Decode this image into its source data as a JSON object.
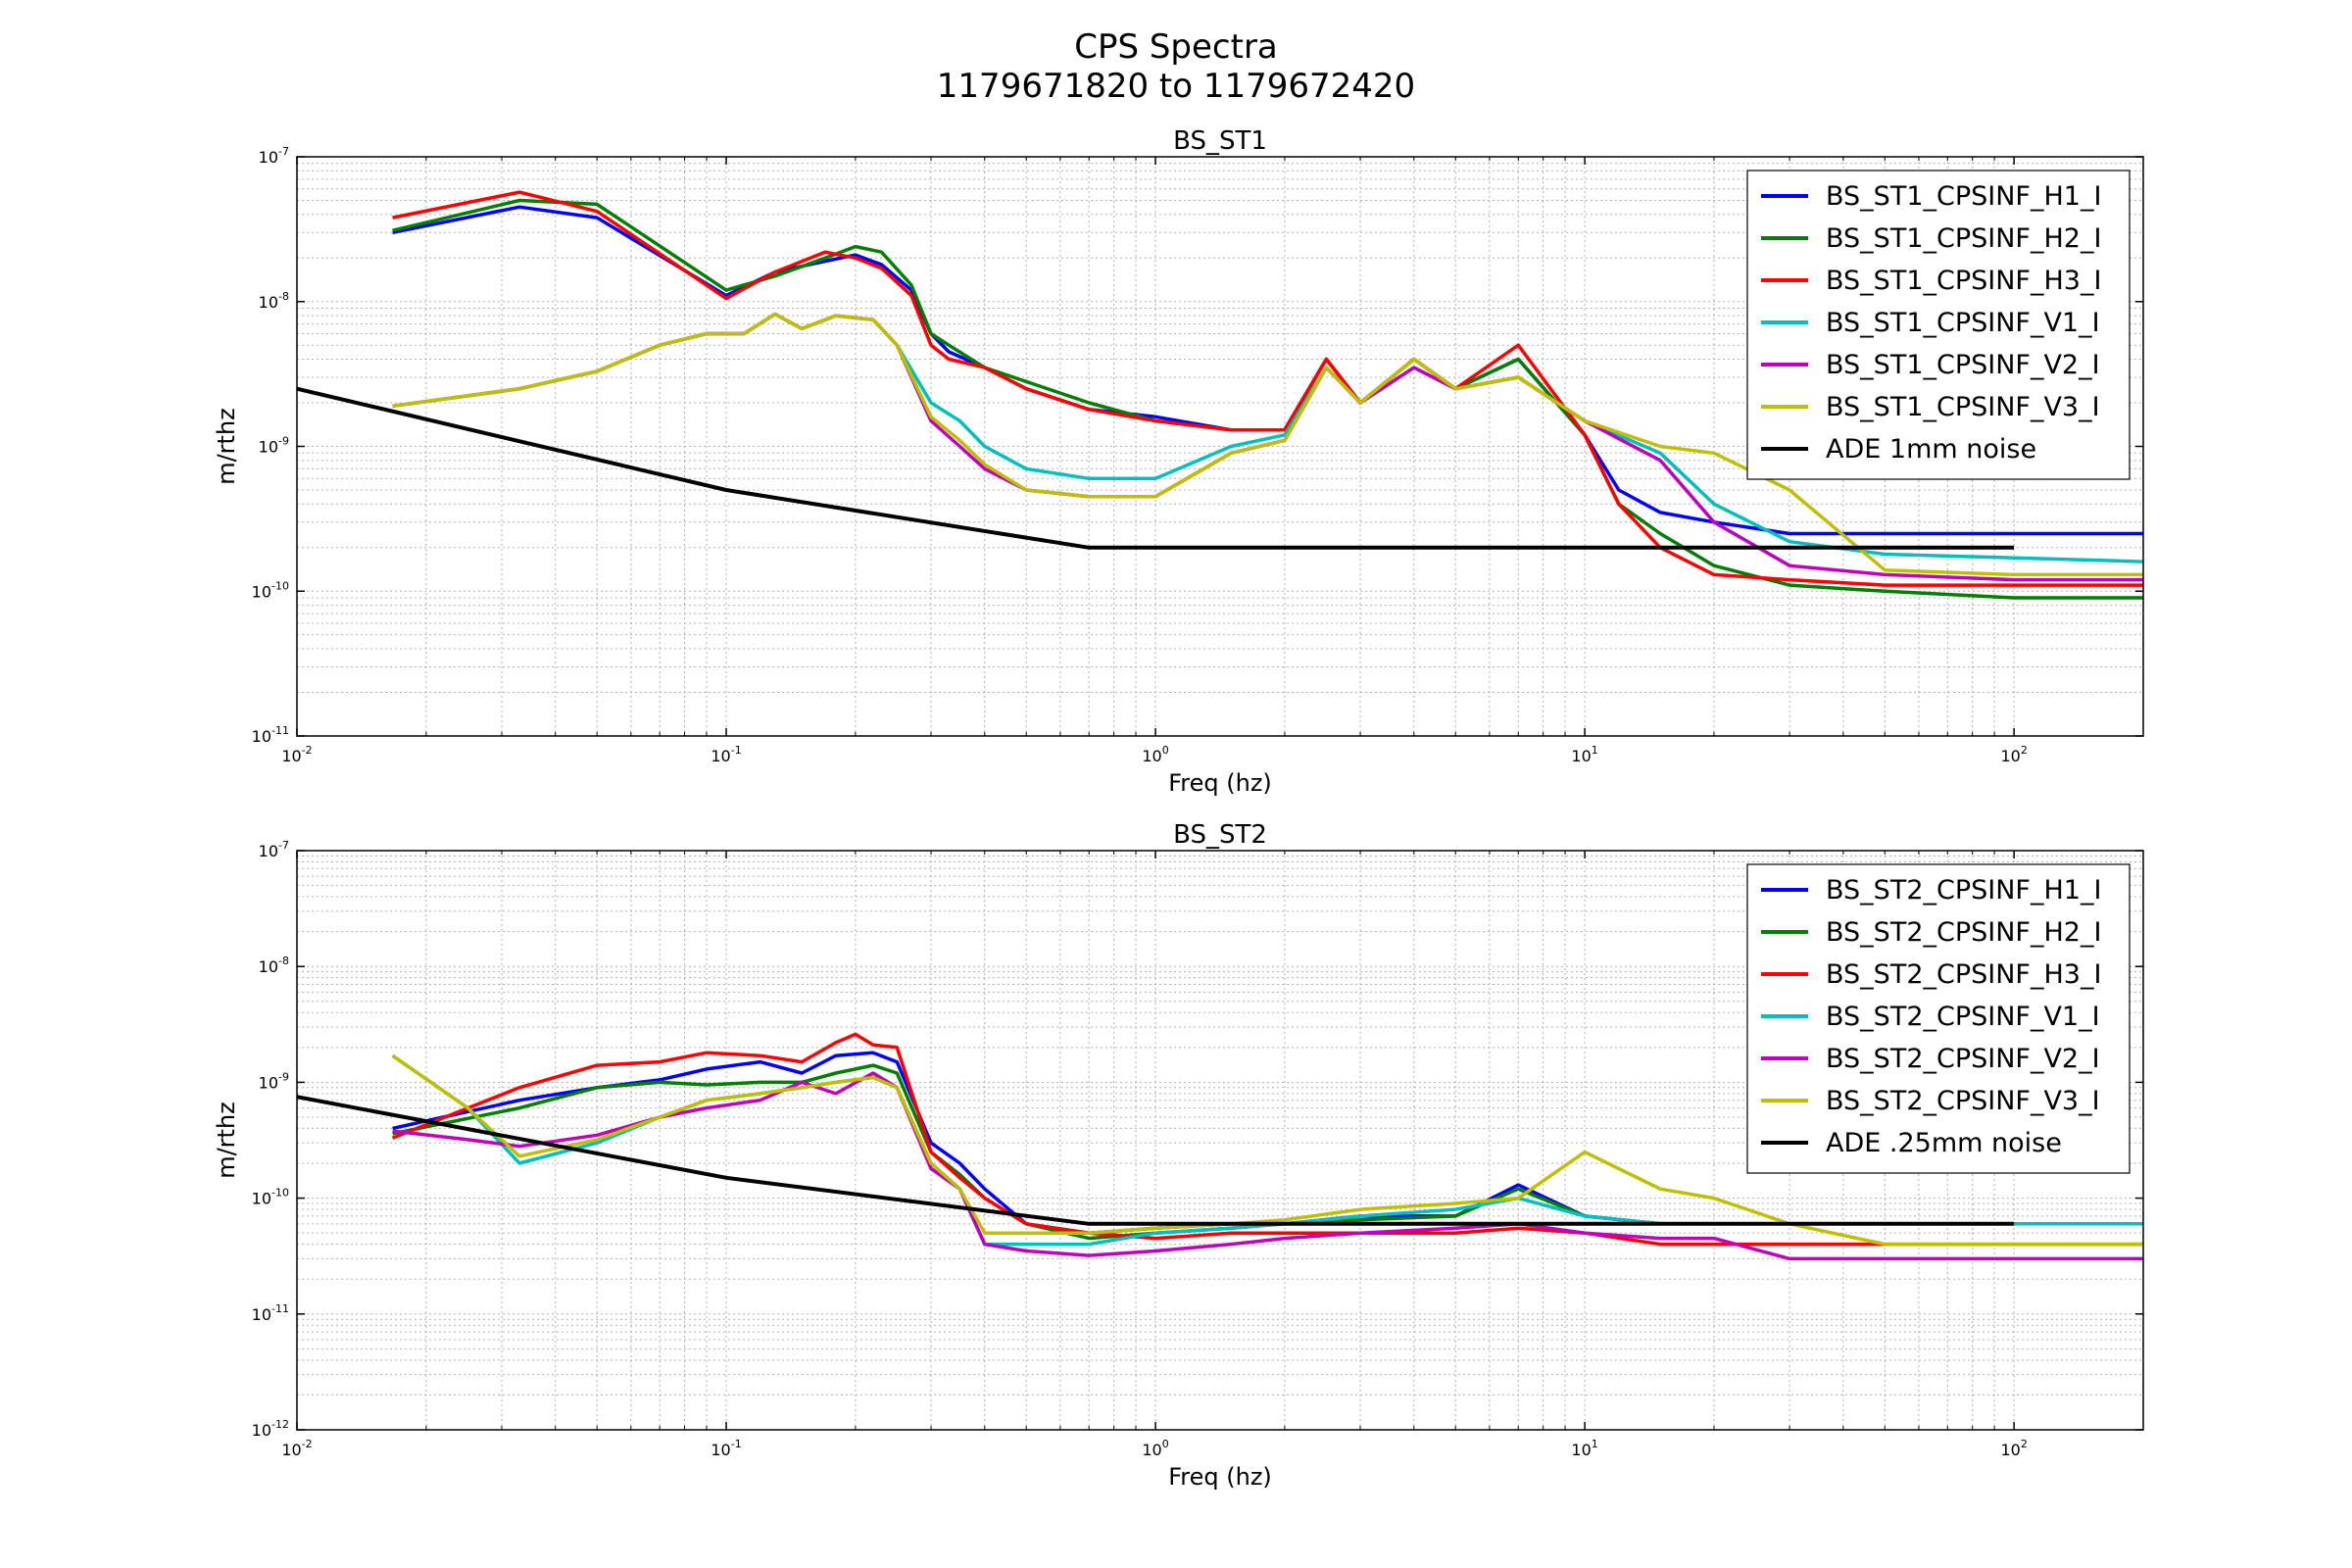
{
  "figure": {
    "title_line1": "CPS Spectra",
    "title_line2": "1179671820 to 1179672420"
  },
  "chart_data": [
    {
      "type": "line",
      "title": "BS_ST1",
      "xlabel": "Freq (hz)",
      "ylabel": "m/rthz",
      "xscale": "log",
      "yscale": "log",
      "xlim": [
        0.01,
        200
      ],
      "ylim": [
        1e-11,
        1e-07
      ],
      "grid": true,
      "legend_position": "top-right",
      "xticks": [
        0.01,
        0.1,
        1,
        10,
        100
      ],
      "xtick_labels": [
        [
          "10",
          "-2"
        ],
        [
          "10",
          "-1"
        ],
        [
          "10",
          "0"
        ],
        [
          "10",
          "1"
        ],
        [
          "10",
          "2"
        ]
      ],
      "yticks": [
        1e-11,
        1e-10,
        1e-09,
        1e-08,
        1e-07
      ],
      "ytick_labels": [
        [
          "10",
          "-11"
        ],
        [
          "10",
          "-10"
        ],
        [
          "10",
          "-9"
        ],
        [
          "10",
          "-8"
        ],
        [
          "10",
          "-7"
        ]
      ],
      "series": [
        {
          "name": "BS_ST1_CPSINF_H1_I",
          "color": "#0000ff",
          "x": [
            0.0167,
            0.033,
            0.05,
            0.1,
            0.13,
            0.17,
            0.2,
            0.23,
            0.27,
            0.3,
            0.33,
            0.4,
            0.5,
            0.7,
            1.0,
            1.5,
            2.0,
            2.5,
            3.0,
            4.0,
            5.0,
            7.0,
            10,
            12,
            15,
            20,
            30,
            50,
            100,
            200
          ],
          "y": [
            3e-08,
            4.5e-08,
            3.8e-08,
            1.1e-08,
            1.6e-08,
            1.9e-08,
            2.1e-08,
            1.8e-08,
            1.2e-08,
            6e-09,
            4.5e-09,
            3.5e-09,
            2.5e-09,
            1.8e-09,
            1.6e-09,
            1.3e-09,
            1.3e-09,
            4e-09,
            2e-09,
            4e-09,
            2.5e-09,
            4e-09,
            1.2e-09,
            5e-10,
            3.5e-10,
            3e-10,
            2.5e-10,
            2.5e-10,
            2.5e-10,
            2.5e-10
          ]
        },
        {
          "name": "BS_ST1_CPSINF_H2_I",
          "color": "#007f00",
          "x": [
            0.0167,
            0.033,
            0.05,
            0.1,
            0.13,
            0.17,
            0.2,
            0.23,
            0.27,
            0.3,
            0.33,
            0.4,
            0.5,
            0.7,
            1.0,
            1.5,
            2.0,
            2.5,
            3.0,
            4.0,
            5.0,
            7.0,
            10,
            12,
            15,
            20,
            30,
            50,
            100,
            200
          ],
          "y": [
            3.1e-08,
            5e-08,
            4.7e-08,
            1.2e-08,
            1.5e-08,
            2e-08,
            2.4e-08,
            2.2e-08,
            1.3e-08,
            6e-09,
            5e-09,
            3.5e-09,
            2.8e-09,
            2e-09,
            1.5e-09,
            1.3e-09,
            1.3e-09,
            4e-09,
            2e-09,
            4e-09,
            2.5e-09,
            4e-09,
            1.2e-09,
            4e-10,
            2.5e-10,
            1.5e-10,
            1.1e-10,
            1e-10,
            9e-11,
            9e-11
          ]
        },
        {
          "name": "BS_ST1_CPSINF_H3_I",
          "color": "#ff0000",
          "x": [
            0.0167,
            0.033,
            0.05,
            0.1,
            0.13,
            0.17,
            0.2,
            0.23,
            0.27,
            0.3,
            0.33,
            0.4,
            0.5,
            0.7,
            1.0,
            1.5,
            2.0,
            2.5,
            3.0,
            4.0,
            5.0,
            7.0,
            10,
            12,
            15,
            20,
            30,
            50,
            100,
            200
          ],
          "y": [
            3.8e-08,
            5.7e-08,
            4.2e-08,
            1.05e-08,
            1.6e-08,
            2.2e-08,
            2e-08,
            1.7e-08,
            1.1e-08,
            5e-09,
            4e-09,
            3.5e-09,
            2.5e-09,
            1.8e-09,
            1.5e-09,
            1.3e-09,
            1.3e-09,
            4e-09,
            2e-09,
            4e-09,
            2.5e-09,
            5e-09,
            1.2e-09,
            4e-10,
            2e-10,
            1.3e-10,
            1.2e-10,
            1.1e-10,
            1.1e-10,
            1.1e-10
          ]
        },
        {
          "name": "BS_ST1_CPSINF_V1_I",
          "color": "#00bfbf",
          "x": [
            0.0167,
            0.033,
            0.05,
            0.07,
            0.09,
            0.11,
            0.13,
            0.15,
            0.18,
            0.22,
            0.25,
            0.3,
            0.35,
            0.4,
            0.5,
            0.7,
            1.0,
            1.5,
            2.0,
            2.5,
            3.0,
            4.0,
            5.0,
            7.0,
            10,
            15,
            20,
            30,
            50,
            100,
            200
          ],
          "y": [
            1.9e-09,
            2.5e-09,
            3.3e-09,
            5e-09,
            6e-09,
            6e-09,
            8.2e-09,
            6.5e-09,
            8e-09,
            7.5e-09,
            5e-09,
            2e-09,
            1.5e-09,
            1e-09,
            7e-10,
            6e-10,
            6e-10,
            1e-09,
            1.2e-09,
            3.5e-09,
            2e-09,
            3.5e-09,
            2.5e-09,
            3e-09,
            1.5e-09,
            9e-10,
            4e-10,
            2.2e-10,
            1.8e-10,
            1.7e-10,
            1.6e-10
          ]
        },
        {
          "name": "BS_ST1_CPSINF_V2_I",
          "color": "#bf00bf",
          "x": [
            0.0167,
            0.033,
            0.05,
            0.07,
            0.09,
            0.11,
            0.13,
            0.15,
            0.18,
            0.22,
            0.25,
            0.3,
            0.35,
            0.4,
            0.5,
            0.7,
            1.0,
            1.5,
            2.0,
            2.5,
            3.0,
            4.0,
            5.0,
            7.0,
            10,
            15,
            20,
            30,
            50,
            100,
            200
          ],
          "y": [
            1.9e-09,
            2.5e-09,
            3.3e-09,
            5e-09,
            6e-09,
            6e-09,
            8.2e-09,
            6.5e-09,
            8e-09,
            7.5e-09,
            5e-09,
            1.5e-09,
            1e-09,
            7e-10,
            5e-10,
            4.5e-10,
            4.5e-10,
            9e-10,
            1.1e-09,
            3.5e-09,
            2e-09,
            3.5e-09,
            2.5e-09,
            3e-09,
            1.5e-09,
            8e-10,
            3e-10,
            1.5e-10,
            1.3e-10,
            1.2e-10,
            1.2e-10
          ]
        },
        {
          "name": "BS_ST1_CPSINF_V3_I",
          "color": "#bfbf00",
          "x": [
            0.0167,
            0.033,
            0.05,
            0.07,
            0.09,
            0.11,
            0.13,
            0.15,
            0.18,
            0.22,
            0.25,
            0.3,
            0.35,
            0.4,
            0.5,
            0.7,
            1.0,
            1.5,
            2.0,
            2.5,
            3.0,
            4.0,
            5.0,
            7.0,
            10,
            15,
            20,
            30,
            50,
            100,
            200
          ],
          "y": [
            1.9e-09,
            2.5e-09,
            3.3e-09,
            5e-09,
            6e-09,
            6e-09,
            8.2e-09,
            6.5e-09,
            8e-09,
            7.5e-09,
            5e-09,
            1.6e-09,
            1.1e-09,
            7.5e-10,
            5e-10,
            4.5e-10,
            4.5e-10,
            9e-10,
            1.1e-09,
            3.5e-09,
            2e-09,
            4e-09,
            2.5e-09,
            3e-09,
            1.5e-09,
            1e-09,
            9e-10,
            5e-10,
            1.4e-10,
            1.3e-10,
            1.3e-10
          ]
        },
        {
          "name": "ADE 1mm noise",
          "color": "#000000",
          "x": [
            0.01,
            0.1,
            0.7,
            100
          ],
          "y": [
            2.5e-09,
            5e-10,
            2e-10,
            2e-10
          ]
        }
      ]
    },
    {
      "type": "line",
      "title": "BS_ST2",
      "xlabel": "Freq (hz)",
      "ylabel": "m/rthz",
      "xscale": "log",
      "yscale": "log",
      "xlim": [
        0.01,
        200
      ],
      "ylim": [
        1e-12,
        1e-07
      ],
      "grid": true,
      "legend_position": "top-right",
      "xticks": [
        0.01,
        0.1,
        1,
        10,
        100
      ],
      "xtick_labels": [
        [
          "10",
          "-2"
        ],
        [
          "10",
          "-1"
        ],
        [
          "10",
          "0"
        ],
        [
          "10",
          "1"
        ],
        [
          "10",
          "2"
        ]
      ],
      "yticks": [
        1e-12,
        1e-11,
        1e-10,
        1e-09,
        1e-08,
        1e-07
      ],
      "ytick_labels": [
        [
          "10",
          "-12"
        ],
        [
          "10",
          "-11"
        ],
        [
          "10",
          "-10"
        ],
        [
          "10",
          "-9"
        ],
        [
          "10",
          "-8"
        ],
        [
          "10",
          "-7"
        ]
      ],
      "series": [
        {
          "name": "BS_ST2_CPSINF_H1_I",
          "color": "#0000ff",
          "x": [
            0.0167,
            0.033,
            0.05,
            0.07,
            0.09,
            0.12,
            0.15,
            0.18,
            0.22,
            0.25,
            0.3,
            0.35,
            0.4,
            0.5,
            0.7,
            1.0,
            1.5,
            2.0,
            3.0,
            5.0,
            7.0,
            10,
            15,
            20,
            30,
            50,
            100,
            200
          ],
          "y": [
            4e-10,
            7e-10,
            9e-10,
            1.05e-09,
            1.3e-09,
            1.5e-09,
            1.2e-09,
            1.7e-09,
            1.8e-09,
            1.5e-09,
            3e-10,
            2e-10,
            1.2e-10,
            6e-11,
            5e-11,
            5.5e-11,
            6e-11,
            6e-11,
            7e-11,
            7e-11,
            1.3e-10,
            7e-11,
            6e-11,
            6e-11,
            6e-11,
            6e-11,
            6e-11,
            6e-11
          ]
        },
        {
          "name": "BS_ST2_CPSINF_H2_I",
          "color": "#007f00",
          "x": [
            0.0167,
            0.033,
            0.05,
            0.07,
            0.09,
            0.12,
            0.15,
            0.18,
            0.22,
            0.25,
            0.3,
            0.35,
            0.4,
            0.5,
            0.7,
            1.0,
            1.5,
            2.0,
            3.0,
            5.0,
            7.0,
            10,
            15,
            20,
            30,
            50,
            100,
            200
          ],
          "y": [
            3.6e-10,
            6e-10,
            9e-10,
            1e-09,
            9.5e-10,
            1e-09,
            1e-09,
            1.2e-09,
            1.4e-09,
            1.2e-09,
            2.5e-10,
            1.6e-10,
            1e-10,
            6e-11,
            4.5e-11,
            5e-11,
            5.5e-11,
            6e-11,
            6.5e-11,
            7e-11,
            1.2e-10,
            7e-11,
            6e-11,
            6e-11,
            6e-11,
            6e-11,
            6e-11,
            6e-11
          ]
        },
        {
          "name": "BS_ST2_CPSINF_H3_I",
          "color": "#ff0000",
          "x": [
            0.0167,
            0.033,
            0.05,
            0.07,
            0.09,
            0.12,
            0.15,
            0.18,
            0.2,
            0.22,
            0.25,
            0.3,
            0.35,
            0.4,
            0.5,
            0.7,
            1.0,
            1.5,
            2.0,
            3.0,
            5.0,
            7.0,
            10,
            15,
            20,
            25,
            30,
            50,
            100,
            200
          ],
          "y": [
            3.3e-10,
            9e-10,
            1.4e-09,
            1.5e-09,
            1.8e-09,
            1.7e-09,
            1.5e-09,
            2.2e-09,
            2.6e-09,
            2.1e-09,
            2e-09,
            2.5e-10,
            1.5e-10,
            1e-10,
            6e-11,
            5e-11,
            4.5e-11,
            5e-11,
            5e-11,
            5e-11,
            5e-11,
            5.5e-11,
            5e-11,
            4e-11,
            4e-11,
            4e-11,
            4e-11,
            4e-11,
            4e-11,
            4e-11
          ]
        },
        {
          "name": "BS_ST2_CPSINF_V1_I",
          "color": "#00bfbf",
          "x": [
            0.0167,
            0.025,
            0.033,
            0.05,
            0.07,
            0.09,
            0.12,
            0.15,
            0.18,
            0.22,
            0.25,
            0.3,
            0.35,
            0.4,
            0.5,
            0.7,
            1.0,
            1.5,
            2.0,
            3.0,
            5.0,
            7.0,
            10,
            15,
            20,
            30,
            50,
            100,
            200
          ],
          "y": [
            1.7e-09,
            6e-10,
            2e-10,
            3e-10,
            5e-10,
            7e-10,
            8e-10,
            9e-10,
            1e-09,
            1.1e-09,
            9e-10,
            2e-10,
            1.2e-10,
            4e-11,
            4e-11,
            4e-11,
            5e-11,
            5.5e-11,
            6e-11,
            7e-11,
            8e-11,
            1e-10,
            7e-11,
            6e-11,
            6e-11,
            6e-11,
            6e-11,
            6e-11,
            6e-11
          ]
        },
        {
          "name": "BS_ST2_CPSINF_V2_I",
          "color": "#bf00bf",
          "x": [
            0.0167,
            0.025,
            0.033,
            0.05,
            0.07,
            0.09,
            0.12,
            0.15,
            0.18,
            0.22,
            0.25,
            0.3,
            0.35,
            0.4,
            0.5,
            0.7,
            1.0,
            1.5,
            2.0,
            3.0,
            5.0,
            7.0,
            10,
            15,
            20,
            30,
            50,
            100,
            200
          ],
          "y": [
            3.8e-10,
            3.2e-10,
            2.8e-10,
            3.5e-10,
            5e-10,
            6e-10,
            7e-10,
            1e-09,
            8e-10,
            1.2e-09,
            9e-10,
            1.8e-10,
            1.2e-10,
            4e-11,
            3.5e-11,
            3.2e-11,
            3.5e-11,
            4e-11,
            4.5e-11,
            5e-11,
            5.5e-11,
            6e-11,
            5e-11,
            4.5e-11,
            4.5e-11,
            3e-11,
            3e-11,
            3e-11,
            3e-11
          ]
        },
        {
          "name": "BS_ST2_CPSINF_V3_I",
          "color": "#bfbf00",
          "x": [
            0.0167,
            0.025,
            0.033,
            0.05,
            0.07,
            0.09,
            0.12,
            0.15,
            0.18,
            0.22,
            0.25,
            0.3,
            0.35,
            0.4,
            0.5,
            0.7,
            1.0,
            1.5,
            2.0,
            3.0,
            5.0,
            7.0,
            10,
            15,
            20,
            30,
            50,
            100,
            200
          ],
          "y": [
            1.7e-09,
            6e-10,
            2.3e-10,
            3.2e-10,
            5e-10,
            7e-10,
            8e-10,
            9e-10,
            1e-09,
            1.1e-09,
            9e-10,
            2e-10,
            1.2e-10,
            5e-11,
            5e-11,
            5e-11,
            5.5e-11,
            6e-11,
            6.5e-11,
            8e-11,
            9e-11,
            1e-10,
            2.5e-10,
            1.2e-10,
            1e-10,
            6e-11,
            4e-11,
            4e-11,
            4e-11
          ]
        },
        {
          "name": "ADE .25mm noise",
          "color": "#000000",
          "x": [
            0.01,
            0.1,
            0.7,
            100
          ],
          "y": [
            7.5e-10,
            1.5e-10,
            6e-11,
            6e-11
          ]
        }
      ]
    }
  ]
}
